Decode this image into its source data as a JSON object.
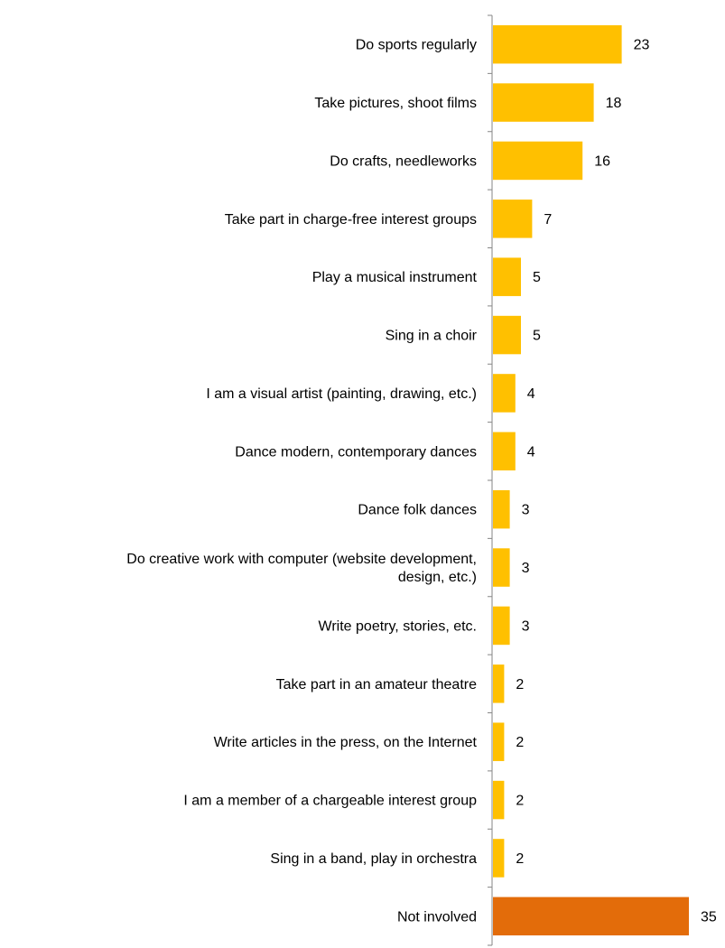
{
  "chart_data": {
    "type": "bar",
    "orientation": "horizontal",
    "title": "",
    "xlabel": "",
    "ylabel": "",
    "xlim": [
      0,
      37
    ],
    "grid": false,
    "legend": "none",
    "categories": [
      [
        "Do sports regularly"
      ],
      [
        "Take pictures, shoot films"
      ],
      [
        "Do crafts, needleworks"
      ],
      [
        "Take part in charge-free interest groups"
      ],
      [
        "Play a musical instrument"
      ],
      [
        "Sing in a choir"
      ],
      [
        "I am a visual artist (painting, drawing, etc.)"
      ],
      [
        "Dance modern, contemporary dances"
      ],
      [
        "Dance folk dances"
      ],
      [
        "Do creative work with computer (website development,",
        "design, etc.)"
      ],
      [
        "Write poetry, stories, etc."
      ],
      [
        "Take part in an amateur theatre"
      ],
      [
        "Write articles in the press, on the Internet"
      ],
      [
        "I am a member of a chargeable interest group"
      ],
      [
        "Sing in a band, play in orchestra"
      ],
      [
        "Not involved"
      ]
    ],
    "values": [
      23,
      18,
      16,
      7,
      5,
      5,
      4,
      4,
      3,
      3,
      3,
      2,
      2,
      2,
      2,
      35
    ],
    "value_labels": [
      "23",
      "18",
      "16",
      "7",
      "5",
      "5",
      "4",
      "4",
      "3",
      "3",
      "3",
      "2",
      "2",
      "2",
      "2",
      "35"
    ],
    "colors": {
      "default": "#FFC000",
      "highlight": "#E36C0A",
      "axis": "#868686"
    },
    "highlight_index": 15
  }
}
